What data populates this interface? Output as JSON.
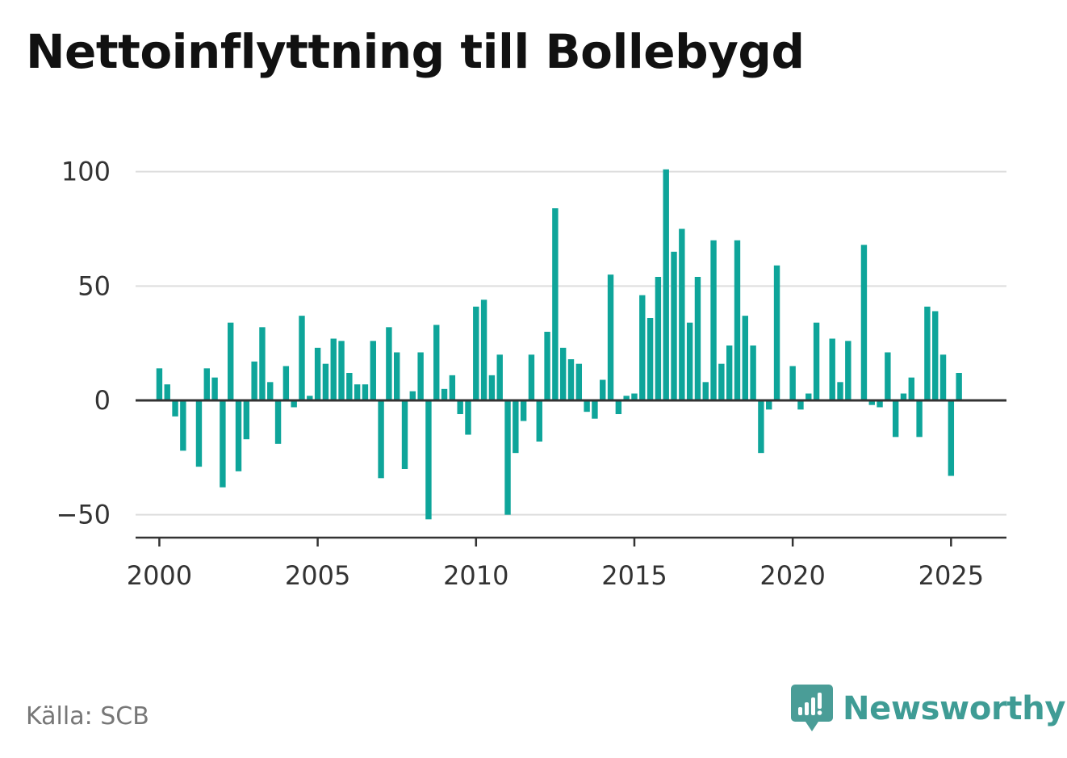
{
  "chart_data": {
    "type": "bar",
    "title": "Nettoinflyttning till Bollebygd",
    "xlabel": "",
    "ylabel": "",
    "ylim": [
      -60,
      108
    ],
    "yticks": [
      -50,
      0,
      50,
      100
    ],
    "ytick_labels": [
      "−50",
      "0",
      "50",
      "100"
    ],
    "xlim": [
      1999.25,
      2026.75
    ],
    "xticks": [
      2000,
      2005,
      2010,
      2015,
      2020,
      2025
    ],
    "xtick_labels": [
      "2000",
      "2005",
      "2010",
      "2015",
      "2020",
      "2025"
    ],
    "grid": true,
    "bar_color": "#0ea59a",
    "start_year": 2000,
    "periods_per_year": 4,
    "values": [
      14,
      7,
      -7,
      -22,
      0,
      -29,
      14,
      10,
      -38,
      34,
      -31,
      -17,
      17,
      32,
      8,
      -19,
      15,
      -3,
      37,
      2,
      23,
      16,
      27,
      26,
      12,
      7,
      7,
      26,
      -34,
      32,
      21,
      -30,
      4,
      21,
      -52,
      33,
      5,
      11,
      -6,
      -15,
      41,
      44,
      11,
      20,
      -50,
      -23,
      -9,
      20,
      -18,
      30,
      84,
      23,
      18,
      16,
      -5,
      -8,
      9,
      55,
      -6,
      2,
      3,
      46,
      36,
      54,
      101,
      65,
      75,
      34,
      54,
      8,
      70,
      16,
      24,
      70,
      37,
      24,
      -23,
      -4,
      59,
      0,
      15,
      -4,
      3,
      34,
      0,
      27,
      8,
      26,
      0,
      68,
      -2,
      -3,
      21,
      -16,
      3,
      10,
      -16,
      41,
      39,
      20,
      -33,
      12
    ]
  },
  "source": {
    "label": "Källa: SCB"
  },
  "brand": {
    "name": "Newsworthy",
    "icon": "newsworthy-logo-icon",
    "color": "#3f9c95"
  }
}
